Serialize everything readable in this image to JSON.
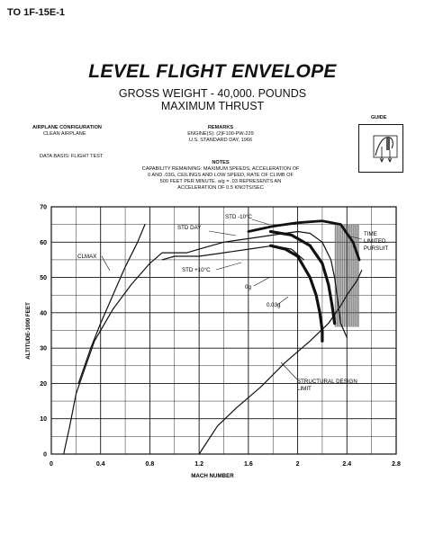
{
  "doc_id": "TO 1F-15E-1",
  "title": "LEVEL FLIGHT ENVELOPE",
  "subtitle_1": "GROSS WEIGHT -  40,000.  POUNDS",
  "subtitle_2": "MAXIMUM THRUST",
  "guide_label": "GUIDE",
  "config": {
    "heading": "AIRPLANE CONFIGURATION",
    "value": "CLEAN AIRPLANE",
    "data_basis": "DATA BASIS: FLIGHT TEST"
  },
  "remarks": {
    "heading": "REMARKS",
    "line1": "ENGINE(S): (2)F100-PW-229",
    "line2": "U.S. STANDARD DAY, 1966"
  },
  "notes": {
    "heading": "NOTES",
    "line1": "CAPABILITY REMAINING: MAXIMUM SPEEDS, ACCELERATION OF",
    "line2": "0 AND .03G, CEILINGS AND LOW SPEED, RATE OF CLIMB OF",
    "line3": "500 FEET PER MINUTE. a/g = .03 REPRESENTS AN",
    "line4": "ACCELERATION OF 0.5 KNOTS/SEC"
  },
  "chart_data": {
    "type": "line",
    "xlabel": "MACH NUMBER",
    "ylabel": "ALTITUDE-1000 FEET",
    "xlim": [
      0,
      2.8
    ],
    "ylim": [
      0,
      70
    ],
    "xticks": [
      "0",
      "0.4",
      "0.8",
      "1.2",
      "1.6",
      "2",
      "2.4",
      "2.8"
    ],
    "yticks": [
      "0",
      "10",
      "20",
      "30",
      "40",
      "50",
      "60",
      "70"
    ],
    "grid": true,
    "annotations": {
      "clmax": "CLMAX",
      "std_minus10": "STD -10°C",
      "std_day": "STD DAY",
      "std_plus10": "STD +10°C",
      "time_limited": "TIME LIMITED PURSUIT",
      "og": "0g",
      "g03": "0.03g",
      "structural": "STRUCTURAL DESIGN LIMIT"
    },
    "series": [
      {
        "name": "CLMAX",
        "points": [
          [
            0.22,
            20
          ],
          [
            0.26,
            24
          ],
          [
            0.32,
            30
          ],
          [
            0.4,
            37
          ],
          [
            0.5,
            45
          ],
          [
            0.6,
            53
          ],
          [
            0.7,
            60
          ],
          [
            0.76,
            65
          ]
        ]
      },
      {
        "name": "STD DAY",
        "points": [
          [
            0.1,
            0
          ],
          [
            0.15,
            8
          ],
          [
            0.2,
            17
          ],
          [
            0.25,
            22
          ],
          [
            0.35,
            32
          ],
          [
            0.5,
            41
          ],
          [
            0.65,
            48
          ],
          [
            0.8,
            54
          ],
          [
            0.9,
            57
          ],
          [
            1.0,
            57
          ],
          [
            1.1,
            57
          ],
          [
            1.2,
            58
          ],
          [
            1.4,
            60
          ],
          [
            1.6,
            61
          ],
          [
            1.8,
            62
          ],
          [
            2.0,
            63
          ],
          [
            2.1,
            62.5
          ],
          [
            2.2,
            60
          ],
          [
            2.27,
            55
          ],
          [
            2.3,
            50
          ],
          [
            2.32,
            45
          ],
          [
            2.35,
            37
          ],
          [
            2.4,
            33
          ]
        ]
      },
      {
        "name": "STD +10°C",
        "points": [
          [
            0.9,
            55
          ],
          [
            1.0,
            56
          ],
          [
            1.2,
            56
          ],
          [
            1.4,
            57
          ],
          [
            1.6,
            58
          ],
          [
            1.8,
            59
          ],
          [
            1.95,
            58
          ],
          [
            2.05,
            55
          ]
        ]
      },
      {
        "name": "STD -10°C",
        "points": [
          [
            1.6,
            63
          ],
          [
            1.8,
            64.5
          ],
          [
            2.0,
            65.5
          ],
          [
            2.2,
            66
          ],
          [
            2.35,
            65
          ],
          [
            2.45,
            60
          ],
          [
            2.5,
            55
          ]
        ]
      },
      {
        "name": "0.03g",
        "points": [
          [
            1.78,
            59
          ],
          [
            1.9,
            58
          ],
          [
            2.0,
            56
          ],
          [
            2.1,
            50
          ],
          [
            2.15,
            45
          ],
          [
            2.18,
            40
          ],
          [
            2.2,
            35
          ],
          [
            2.2,
            32
          ]
        ]
      },
      {
        "name": "0g",
        "points": [
          [
            1.78,
            63
          ],
          [
            1.95,
            62
          ],
          [
            2.1,
            59
          ],
          [
            2.2,
            54
          ],
          [
            2.25,
            48
          ],
          [
            2.28,
            42
          ],
          [
            2.3,
            37
          ]
        ]
      },
      {
        "name": "STRUCTURAL DESIGN LIMIT",
        "points": [
          [
            1.2,
            0
          ],
          [
            1.35,
            8
          ],
          [
            1.5,
            13
          ],
          [
            1.7,
            19
          ],
          [
            1.9,
            26
          ],
          [
            2.1,
            32
          ],
          [
            2.25,
            37
          ],
          [
            2.35,
            42
          ],
          [
            2.4,
            45
          ],
          [
            2.48,
            49
          ],
          [
            2.52,
            52
          ]
        ]
      }
    ],
    "time_limited_region": {
      "mach": [
        2.3,
        2.5
      ],
      "alt": [
        36,
        65
      ]
    }
  }
}
